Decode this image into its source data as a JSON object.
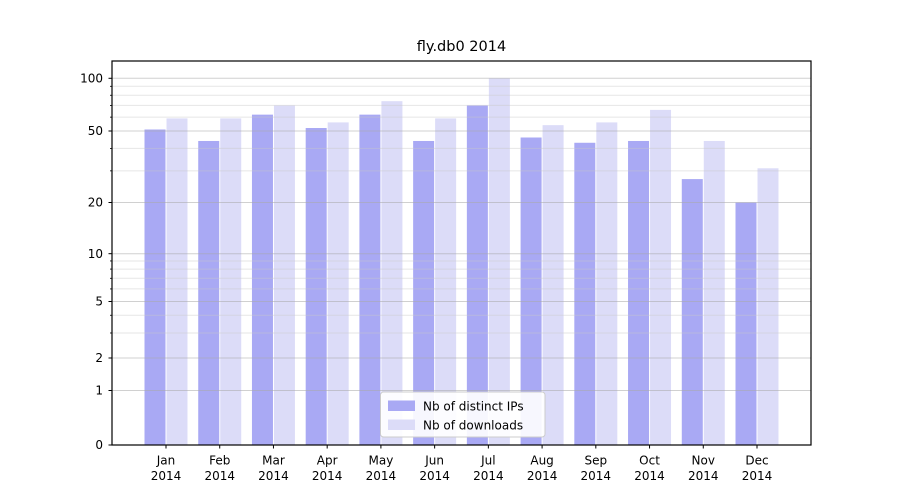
{
  "chart_data": {
    "type": "bar",
    "title": "fly.db0 2014",
    "categories": [
      "Jan 2014",
      "Feb 2014",
      "Mar 2014",
      "Apr 2014",
      "May 2014",
      "Jun 2014",
      "Jul 2014",
      "Aug 2014",
      "Sep 2014",
      "Oct 2014",
      "Nov 2014",
      "Dec 2014"
    ],
    "series": [
      {
        "name": "Nb of distinct IPs",
        "color": "#a9a9f4",
        "values": [
          51,
          44,
          62,
          52,
          62,
          44,
          70,
          46,
          43,
          44,
          27,
          20
        ]
      },
      {
        "name": "Nb of downloads",
        "color": "#dcdcf8",
        "values": [
          59,
          59,
          70,
          56,
          74,
          59,
          100,
          54,
          56,
          66,
          44,
          31
        ]
      }
    ],
    "xlabel": "",
    "ylabel": "",
    "yscale": "symlog",
    "ylim": [
      0,
      126
    ],
    "ytick_values": [
      0,
      1,
      2,
      5,
      10,
      20,
      50,
      100
    ],
    "ytick_labels": [
      "0",
      "1",
      "2",
      "5",
      "10",
      "20",
      "50",
      "100"
    ],
    "minor_ytick_values": [
      3,
      4,
      6,
      7,
      8,
      9,
      30,
      40,
      60,
      70,
      80,
      90
    ],
    "grid": "on",
    "legend_position": "lower center"
  },
  "colors": {
    "spine": "#000000",
    "tick": "#000000",
    "grid_major": "#aaaaaa",
    "grid_minor": "#c8c8c8",
    "legend_bg": "#ffffff",
    "legend_border": "#cccccc",
    "background": "#ffffff"
  }
}
